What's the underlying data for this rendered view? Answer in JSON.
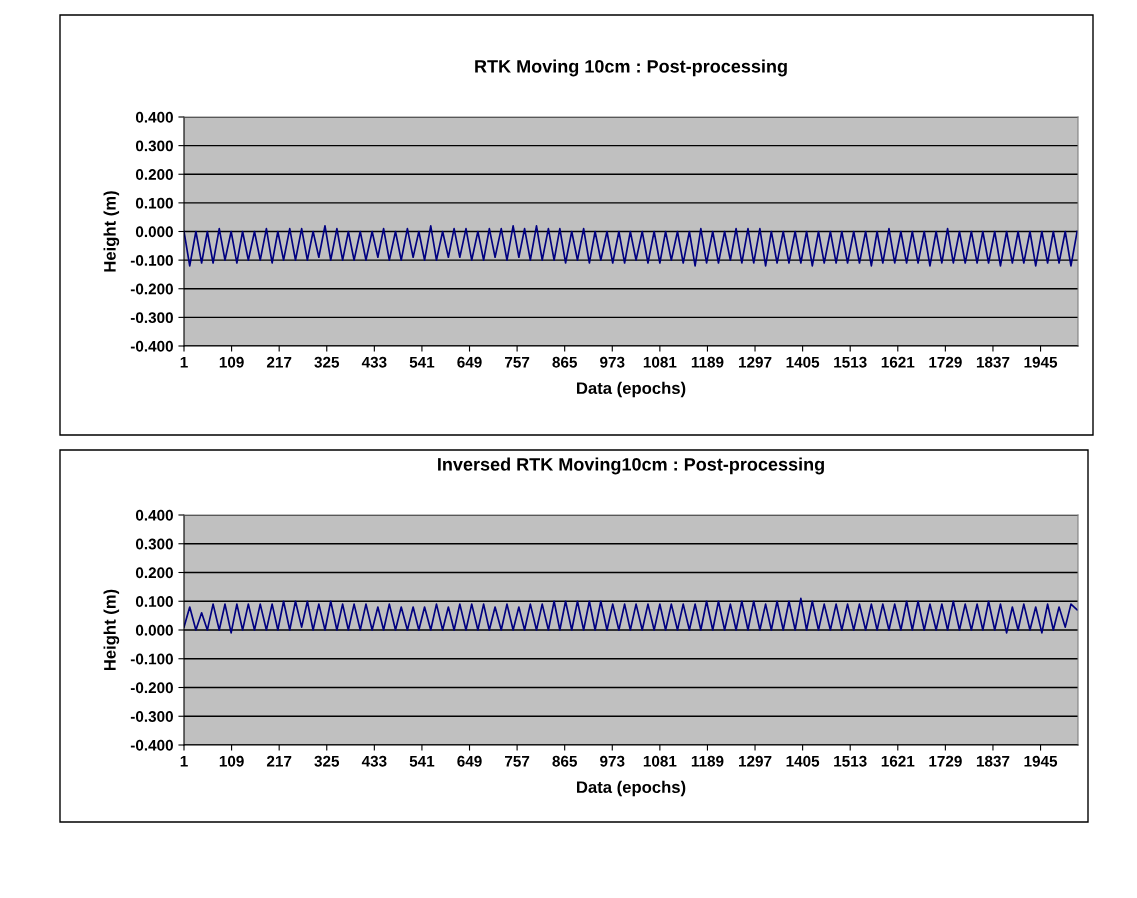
{
  "chart_data": [
    {
      "type": "line",
      "title": "RTK Moving 10cm : Post-processing",
      "xlabel": "Data (epochs)",
      "ylabel": "Height (m)",
      "grid": "y",
      "x": [
        1,
        14,
        28,
        41,
        54,
        67,
        81,
        94,
        108,
        121,
        134,
        147,
        161,
        174,
        188,
        201,
        214,
        227,
        241,
        254,
        268,
        281,
        294,
        307,
        321,
        334,
        348,
        361,
        374,
        387,
        401,
        414,
        428,
        441,
        454,
        467,
        481,
        494,
        508,
        521,
        534,
        547,
        561,
        574,
        588,
        601,
        614,
        627,
        641,
        654,
        668,
        681,
        694,
        707,
        721,
        734,
        748,
        761,
        774,
        787,
        801,
        814,
        828,
        841,
        854,
        867,
        881,
        894,
        908,
        921,
        934,
        947,
        961,
        974,
        988,
        1001,
        1014,
        1027,
        1041,
        1054,
        1068,
        1081,
        1094,
        1107,
        1121,
        1134,
        1148,
        1161,
        1174,
        1187,
        1201,
        1214,
        1228,
        1241,
        1254,
        1267,
        1281,
        1294,
        1308,
        1321,
        1334,
        1347,
        1361,
        1374,
        1388,
        1401,
        1414,
        1427,
        1441,
        1454,
        1468,
        1481,
        1494,
        1507,
        1521,
        1534,
        1548,
        1561,
        1574,
        1587,
        1601,
        1614,
        1628,
        1641,
        1654,
        1667,
        1681,
        1694,
        1708,
        1721,
        1734,
        1747,
        1761,
        1774,
        1788,
        1801,
        1814,
        1827,
        1841,
        1854,
        1868,
        1881,
        1894,
        1907,
        1921,
        1934,
        1948,
        1961,
        1974,
        1987,
        2001,
        2014,
        2028
      ],
      "series": [
        {
          "color": "#000080",
          "values": [
            0,
            -0.12,
            0,
            -0.11,
            0,
            -0.11,
            0.01,
            -0.1,
            0,
            -0.11,
            0,
            -0.1,
            0,
            -0.1,
            0.01,
            -0.11,
            0,
            -0.1,
            0.01,
            -0.1,
            0.01,
            -0.1,
            0,
            -0.09,
            0.02,
            -0.1,
            0.01,
            -0.1,
            0,
            -0.1,
            0,
            -0.1,
            0,
            -0.09,
            0.01,
            -0.1,
            0,
            -0.1,
            0.01,
            -0.09,
            0,
            -0.1,
            0.02,
            -0.1,
            0,
            -0.09,
            0.01,
            -0.09,
            0.01,
            -0.1,
            0,
            -0.1,
            0.01,
            -0.09,
            0.01,
            -0.1,
            0.02,
            -0.09,
            0.01,
            -0.1,
            0.02,
            -0.1,
            0.01,
            -0.1,
            0.01,
            -0.11,
            0,
            -0.1,
            0.01,
            -0.11,
            0,
            -0.1,
            0,
            -0.11,
            0,
            -0.11,
            0,
            -0.1,
            0,
            -0.11,
            0,
            -0.11,
            0,
            -0.1,
            0,
            -0.11,
            0,
            -0.12,
            0.01,
            -0.11,
            0,
            -0.11,
            0,
            -0.1,
            0.01,
            -0.11,
            0.01,
            -0.11,
            0.01,
            -0.12,
            0,
            -0.11,
            0,
            -0.11,
            0,
            -0.11,
            0,
            -0.12,
            0,
            -0.11,
            0,
            -0.11,
            0,
            -0.11,
            0,
            -0.11,
            0,
            -0.12,
            0,
            -0.11,
            0.01,
            -0.11,
            0,
            -0.11,
            0,
            -0.11,
            0,
            -0.12,
            0,
            -0.11,
            0.01,
            -0.11,
            0,
            -0.11,
            0,
            -0.11,
            0,
            -0.11,
            0,
            -0.12,
            0,
            -0.11,
            0,
            -0.11,
            0,
            -0.12,
            0,
            -0.11,
            0,
            -0.11,
            0,
            -0.12,
            0
          ]
        }
      ],
      "xlim": [
        1,
        2030
      ],
      "xticks": [
        1,
        109,
        217,
        325,
        433,
        541,
        649,
        757,
        865,
        973,
        1081,
        1189,
        1297,
        1405,
        1513,
        1621,
        1729,
        1837,
        1945
      ],
      "ylim": [
        -0.4,
        0.4
      ],
      "yticks": [
        {
          "value": -0.4,
          "label": "-0.400"
        },
        {
          "value": -0.3,
          "label": "-0.300"
        },
        {
          "value": -0.2,
          "label": "-0.200"
        },
        {
          "value": -0.1,
          "label": "-0.100"
        },
        {
          "value": 0,
          "label": "0.000"
        },
        {
          "value": 0.1,
          "label": "0.100"
        },
        {
          "value": 0.2,
          "label": "0.200"
        },
        {
          "value": 0.3,
          "label": "0.300"
        },
        {
          "value": 0.4,
          "label": "0.400"
        }
      ]
    },
    {
      "type": "line",
      "title": "Inversed RTK Moving10cm : Post-processing",
      "xlabel": "Data (epochs)",
      "ylabel": "Height (m)",
      "grid": "y",
      "x": [
        1,
        14,
        28,
        41,
        54,
        67,
        81,
        94,
        108,
        121,
        134,
        147,
        161,
        174,
        188,
        201,
        214,
        227,
        241,
        254,
        268,
        281,
        294,
        307,
        321,
        334,
        348,
        361,
        374,
        387,
        401,
        414,
        428,
        441,
        454,
        467,
        481,
        494,
        508,
        521,
        534,
        547,
        561,
        574,
        588,
        601,
        614,
        627,
        641,
        654,
        668,
        681,
        694,
        707,
        721,
        734,
        748,
        761,
        774,
        787,
        801,
        814,
        828,
        841,
        854,
        867,
        881,
        894,
        908,
        921,
        934,
        947,
        961,
        974,
        988,
        1001,
        1014,
        1027,
        1041,
        1054,
        1068,
        1081,
        1094,
        1107,
        1121,
        1134,
        1148,
        1161,
        1174,
        1187,
        1201,
        1214,
        1228,
        1241,
        1254,
        1267,
        1281,
        1294,
        1308,
        1321,
        1334,
        1347,
        1361,
        1374,
        1388,
        1401,
        1414,
        1427,
        1441,
        1454,
        1468,
        1481,
        1494,
        1507,
        1521,
        1534,
        1548,
        1561,
        1574,
        1587,
        1601,
        1614,
        1628,
        1641,
        1654,
        1667,
        1681,
        1694,
        1708,
        1721,
        1734,
        1747,
        1761,
        1774,
        1788,
        1801,
        1814,
        1827,
        1841,
        1854,
        1868,
        1881,
        1894,
        1907,
        1921,
        1934,
        1948,
        1961,
        1974,
        1987,
        2001,
        2014,
        2028
      ],
      "series": [
        {
          "color": "#000080",
          "values": [
            0.01,
            0.08,
            0,
            0.06,
            0,
            0.09,
            0,
            0.09,
            -0.01,
            0.09,
            0,
            0.09,
            0,
            0.09,
            0,
            0.09,
            0,
            0.1,
            0,
            0.1,
            0.01,
            0.1,
            0,
            0.09,
            0,
            0.1,
            0,
            0.09,
            0,
            0.09,
            0,
            0.09,
            0,
            0.08,
            0,
            0.09,
            0,
            0.08,
            0,
            0.08,
            0,
            0.08,
            0,
            0.09,
            0,
            0.08,
            0,
            0.09,
            0,
            0.09,
            0,
            0.09,
            0,
            0.08,
            0,
            0.09,
            0,
            0.08,
            0,
            0.09,
            0,
            0.09,
            0,
            0.1,
            0,
            0.1,
            0,
            0.1,
            0,
            0.1,
            0,
            0.1,
            0,
            0.09,
            0,
            0.09,
            0,
            0.09,
            0,
            0.09,
            0,
            0.09,
            0,
            0.09,
            0,
            0.09,
            0,
            0.09,
            0,
            0.1,
            0,
            0.1,
            0,
            0.09,
            0,
            0.1,
            0,
            0.1,
            0,
            0.09,
            0,
            0.1,
            0,
            0.1,
            0,
            0.11,
            0,
            0.1,
            0,
            0.09,
            0,
            0.09,
            0,
            0.09,
            0,
            0.09,
            0,
            0.09,
            0,
            0.09,
            0,
            0.09,
            0,
            0.1,
            0,
            0.1,
            0,
            0.09,
            0,
            0.09,
            0,
            0.1,
            0,
            0.09,
            0,
            0.09,
            0,
            0.1,
            0,
            0.09,
            -0.01,
            0.08,
            0,
            0.09,
            0,
            0.08,
            -0.01,
            0.09,
            0,
            0.08,
            0.01,
            0.09,
            0.07
          ]
        }
      ],
      "xlim": [
        1,
        2030
      ],
      "xticks": [
        1,
        109,
        217,
        325,
        433,
        541,
        649,
        757,
        865,
        973,
        1081,
        1189,
        1297,
        1405,
        1513,
        1621,
        1729,
        1837,
        1945
      ],
      "ylim": [
        -0.4,
        0.4
      ],
      "yticks": [
        {
          "value": -0.4,
          "label": "-0.400"
        },
        {
          "value": -0.3,
          "label": "-0.300"
        },
        {
          "value": -0.2,
          "label": "-0.200"
        },
        {
          "value": -0.1,
          "label": "-0.100"
        },
        {
          "value": 0,
          "label": "0.000"
        },
        {
          "value": 0.1,
          "label": "0.100"
        },
        {
          "value": 0.2,
          "label": "0.200"
        },
        {
          "value": 0.3,
          "label": "0.300"
        },
        {
          "value": 0.4,
          "label": "0.400"
        }
      ]
    }
  ]
}
